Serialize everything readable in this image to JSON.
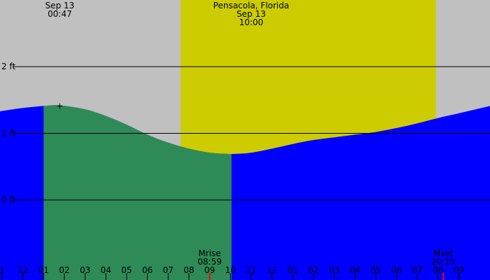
{
  "chart_data": {
    "type": "area",
    "title": "Pensacola, Florida",
    "colors": {
      "background": "#c0c0c0",
      "daylight": "#cccc00",
      "flood": "#2e8b57",
      "tide": "#0000ff",
      "line": "#000000",
      "moon_marker": "#ff0000"
    },
    "x_domain": [
      -2.1,
      21.5
    ],
    "ylim": [
      -1.2,
      3.0
    ],
    "daylight": {
      "start": 6.6,
      "end": 18.9
    },
    "flood_window": {
      "start": 0.0,
      "end": 9.05
    },
    "y_ticks": [
      {
        "value": 2,
        "label": "2 ft"
      },
      {
        "value": 1,
        "label": "1 ft"
      },
      {
        "value": 0,
        "label": "0 ft"
      }
    ],
    "reference_line": {
      "y": 1.0,
      "x_start": 4.2,
      "x_end": 17.5
    },
    "series": [
      {
        "x": [
          -2.1,
          -1,
          0,
          0.78,
          2,
          3,
          4,
          5,
          6,
          7,
          8,
          9,
          10,
          11,
          12,
          13,
          14,
          15,
          16,
          17,
          18,
          19,
          20,
          21.5
        ],
        "values": [
          1.33,
          1.38,
          1.41,
          1.42,
          1.36,
          1.26,
          1.13,
          0.98,
          0.86,
          0.77,
          0.71,
          0.69,
          0.71,
          0.77,
          0.84,
          0.9,
          0.94,
          0.98,
          1.02,
          1.08,
          1.15,
          1.23,
          1.3,
          1.41
        ]
      }
    ],
    "top_annotations": [
      {
        "lines": [
          "Sep 13",
          "00:47"
        ],
        "x": 0.78
      },
      {
        "lines": [
          "Pensacola, Florida",
          "Sep 13",
          "10:00"
        ],
        "x": 10.0
      }
    ],
    "markers": [
      {
        "x": 0.78,
        "y": 1.42,
        "symbol": "+"
      }
    ],
    "x_ticks": [
      {
        "x": -2,
        "label": "1"
      },
      {
        "x": -1,
        "label": "12"
      },
      {
        "x": 0,
        "label": "01"
      },
      {
        "x": 1,
        "label": "02"
      },
      {
        "x": 2,
        "label": "03"
      },
      {
        "x": 3,
        "label": "04"
      },
      {
        "x": 4,
        "label": "05"
      },
      {
        "x": 5,
        "label": "06"
      },
      {
        "x": 6,
        "label": "07"
      },
      {
        "x": 7,
        "label": "08"
      },
      {
        "x": 8,
        "label": "09"
      },
      {
        "x": 9,
        "label": "10"
      },
      {
        "x": 10,
        "label": "11"
      },
      {
        "x": 11,
        "label": "12"
      },
      {
        "x": 12,
        "label": "01"
      },
      {
        "x": 13,
        "label": "02"
      },
      {
        "x": 14,
        "label": "03"
      },
      {
        "x": 15,
        "label": "04"
      },
      {
        "x": 16,
        "label": "05"
      },
      {
        "x": 17,
        "label": "06"
      },
      {
        "x": 18,
        "label": "07"
      },
      {
        "x": 19,
        "label": "08"
      },
      {
        "x": 20,
        "label": "09"
      }
    ],
    "moon_events": [
      {
        "name": "Mrise",
        "time": "08:59",
        "x": 8.0
      },
      {
        "name": "Mset",
        "time": "20:15",
        "x": 19.25
      }
    ]
  }
}
